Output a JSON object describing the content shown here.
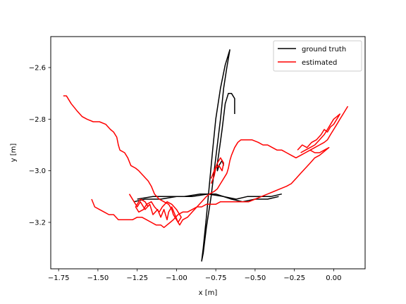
{
  "chart_data": {
    "type": "line",
    "xlabel": "x [m]",
    "ylabel": "y [m]",
    "xlim": [
      -1.8,
      0.2
    ],
    "ylim": [
      -3.38,
      -2.48
    ],
    "xticks": [
      -1.75,
      -1.5,
      -1.25,
      -1.0,
      -0.75,
      -0.5,
      -0.25,
      0.0
    ],
    "xtick_labels": [
      "−1.75",
      "−1.50",
      "−1.25",
      "−1.00",
      "−0.75",
      "−0.50",
      "−0.25",
      "0.00"
    ],
    "yticks": [
      -3.2,
      -3.0,
      -2.8,
      -2.6
    ],
    "ytick_labels": [
      "−3.2",
      "−3.0",
      "−2.8",
      "−2.6"
    ],
    "legend_position": "top-right",
    "series": [
      {
        "name": "ground truth",
        "color": "#000000",
        "paths": [
          [
            [
              -0.63,
              -2.78
            ],
            [
              -0.63,
              -2.72
            ],
            [
              -0.65,
              -2.7
            ],
            [
              -0.67,
              -2.7
            ],
            [
              -0.69,
              -2.74
            ],
            [
              -0.71,
              -2.84
            ],
            [
              -0.73,
              -2.93
            ],
            [
              -0.74,
              -2.97
            ],
            [
              -0.74,
              -3.0
            ],
            [
              -0.73,
              -2.98
            ],
            [
              -0.71,
              -2.96
            ],
            [
              -0.7,
              -2.98
            ]
          ],
          [
            [
              -0.66,
              -2.53
            ],
            [
              -0.68,
              -2.6
            ],
            [
              -0.7,
              -2.68
            ],
            [
              -0.72,
              -2.8
            ],
            [
              -0.75,
              -2.95
            ],
            [
              -0.78,
              -3.1
            ],
            [
              -0.81,
              -3.22
            ],
            [
              -0.83,
              -3.32
            ],
            [
              -0.84,
              -3.35
            ],
            [
              -0.83,
              -3.3
            ],
            [
              -0.81,
              -3.18
            ],
            [
              -0.79,
              -3.05
            ],
            [
              -0.77,
              -2.92
            ],
            [
              -0.75,
              -2.8
            ],
            [
              -0.72,
              -2.68
            ],
            [
              -0.69,
              -2.59
            ],
            [
              -0.66,
              -2.53
            ]
          ],
          [
            [
              -1.27,
              -3.12
            ],
            [
              -1.2,
              -3.11
            ],
            [
              -1.1,
              -3.11
            ],
            [
              -1.0,
              -3.1
            ],
            [
              -0.9,
              -3.1
            ],
            [
              -0.8,
              -3.09
            ],
            [
              -0.7,
              -3.1
            ],
            [
              -0.62,
              -3.11
            ],
            [
              -0.55,
              -3.1
            ],
            [
              -0.47,
              -3.1
            ],
            [
              -0.4,
              -3.1
            ],
            [
              -0.33,
              -3.09
            ]
          ],
          [
            [
              -1.25,
              -3.11
            ],
            [
              -1.15,
              -3.1
            ],
            [
              -1.05,
              -3.1
            ],
            [
              -0.95,
              -3.1
            ],
            [
              -0.85,
              -3.09
            ],
            [
              -0.75,
              -3.09
            ],
            [
              -0.65,
              -3.11
            ],
            [
              -0.58,
              -3.12
            ],
            [
              -0.5,
              -3.11
            ],
            [
              -0.42,
              -3.11
            ],
            [
              -0.35,
              -3.1
            ]
          ]
        ]
      },
      {
        "name": "estimated",
        "color": "#ff0000",
        "paths": [
          [
            [
              -1.72,
              -2.71
            ],
            [
              -1.7,
              -2.71
            ],
            [
              -1.67,
              -2.74
            ],
            [
              -1.63,
              -2.77
            ],
            [
              -1.6,
              -2.79
            ],
            [
              -1.57,
              -2.8
            ],
            [
              -1.53,
              -2.81
            ],
            [
              -1.49,
              -2.81
            ],
            [
              -1.45,
              -2.82
            ],
            [
              -1.42,
              -2.84
            ],
            [
              -1.4,
              -2.85
            ],
            [
              -1.38,
              -2.87
            ],
            [
              -1.37,
              -2.9
            ],
            [
              -1.36,
              -2.92
            ],
            [
              -1.33,
              -2.93
            ],
            [
              -1.31,
              -2.95
            ],
            [
              -1.29,
              -2.98
            ],
            [
              -1.26,
              -2.99
            ],
            [
              -1.24,
              -3.0
            ],
            [
              -1.21,
              -3.02
            ],
            [
              -1.18,
              -3.04
            ],
            [
              -1.16,
              -3.06
            ],
            [
              -1.14,
              -3.09
            ],
            [
              -1.11,
              -3.11
            ],
            [
              -1.08,
              -3.12
            ],
            [
              -1.05,
              -3.13
            ],
            [
              -1.03,
              -3.15
            ],
            [
              -1.02,
              -3.17
            ],
            [
              -1.0,
              -3.19
            ],
            [
              -0.98,
              -3.21
            ],
            [
              -0.96,
              -3.19
            ],
            [
              -0.93,
              -3.18
            ],
            [
              -0.9,
              -3.16
            ],
            [
              -0.87,
              -3.14
            ],
            [
              -0.84,
              -3.12
            ],
            [
              -0.81,
              -3.1
            ],
            [
              -0.79,
              -3.09
            ],
            [
              -0.76,
              -3.08
            ],
            [
              -0.74,
              -3.07
            ],
            [
              -0.72,
              -3.05
            ],
            [
              -0.7,
              -3.03
            ],
            [
              -0.68,
              -3.01
            ],
            [
              -0.67,
              -2.99
            ],
            [
              -0.66,
              -2.96
            ],
            [
              -0.65,
              -2.94
            ],
            [
              -0.63,
              -2.91
            ],
            [
              -0.61,
              -2.89
            ],
            [
              -0.59,
              -2.88
            ],
            [
              -0.56,
              -2.88
            ],
            [
              -0.52,
              -2.88
            ],
            [
              -0.48,
              -2.89
            ],
            [
              -0.45,
              -2.9
            ],
            [
              -0.42,
              -2.9
            ],
            [
              -0.39,
              -2.91
            ],
            [
              -0.36,
              -2.92
            ],
            [
              -0.33,
              -2.92
            ],
            [
              -0.3,
              -2.93
            ],
            [
              -0.27,
              -2.94
            ],
            [
              -0.24,
              -2.95
            ],
            [
              -0.21,
              -2.94
            ],
            [
              -0.18,
              -2.93
            ],
            [
              -0.15,
              -2.92
            ],
            [
              -0.12,
              -2.91
            ],
            [
              -0.09,
              -2.9
            ],
            [
              -0.06,
              -2.89
            ],
            [
              -0.04,
              -2.88
            ],
            [
              -0.02,
              -2.86
            ],
            [
              0.0,
              -2.84
            ],
            [
              0.02,
              -2.82
            ],
            [
              0.04,
              -2.8
            ],
            [
              0.06,
              -2.78
            ],
            [
              0.08,
              -2.76
            ],
            [
              0.09,
              -2.75
            ]
          ],
          [
            [
              -1.54,
              -3.11
            ],
            [
              -1.52,
              -3.14
            ],
            [
              -1.49,
              -3.15
            ],
            [
              -1.46,
              -3.16
            ],
            [
              -1.43,
              -3.17
            ],
            [
              -1.4,
              -3.17
            ],
            [
              -1.37,
              -3.19
            ],
            [
              -1.34,
              -3.19
            ],
            [
              -1.31,
              -3.19
            ],
            [
              -1.28,
              -3.19
            ],
            [
              -1.25,
              -3.18
            ],
            [
              -1.22,
              -3.18
            ],
            [
              -1.19,
              -3.19
            ],
            [
              -1.16,
              -3.2
            ],
            [
              -1.13,
              -3.21
            ],
            [
              -1.1,
              -3.21
            ],
            [
              -1.08,
              -3.22
            ],
            [
              -1.06,
              -3.21
            ],
            [
              -1.04,
              -3.2
            ],
            [
              -1.02,
              -3.19
            ],
            [
              -0.99,
              -3.17
            ],
            [
              -0.96,
              -3.16
            ],
            [
              -0.93,
              -3.16
            ],
            [
              -0.9,
              -3.15
            ],
            [
              -0.87,
              -3.14
            ],
            [
              -0.84,
              -3.14
            ],
            [
              -0.81,
              -3.13
            ],
            [
              -0.78,
              -3.13
            ],
            [
              -0.75,
              -3.13
            ],
            [
              -0.72,
              -3.12
            ],
            [
              -0.69,
              -3.12
            ],
            [
              -0.66,
              -3.12
            ],
            [
              -0.62,
              -3.12
            ],
            [
              -0.58,
              -3.12
            ],
            [
              -0.54,
              -3.12
            ],
            [
              -0.5,
              -3.11
            ],
            [
              -0.46,
              -3.1
            ],
            [
              -0.42,
              -3.09
            ],
            [
              -0.38,
              -3.08
            ],
            [
              -0.34,
              -3.07
            ],
            [
              -0.3,
              -3.06
            ],
            [
              -0.27,
              -3.05
            ],
            [
              -0.24,
              -3.03
            ],
            [
              -0.21,
              -3.01
            ],
            [
              -0.18,
              -2.99
            ],
            [
              -0.15,
              -2.97
            ],
            [
              -0.12,
              -2.95
            ],
            [
              -0.09,
              -2.94
            ],
            [
              -0.07,
              -2.93
            ],
            [
              -0.05,
              -2.92
            ],
            [
              -0.03,
              -2.91
            ],
            [
              -0.06,
              -2.92
            ],
            [
              -0.09,
              -2.93
            ],
            [
              -0.12,
              -2.93
            ],
            [
              -0.15,
              -2.92
            ]
          ],
          [
            [
              -1.3,
              -3.09
            ],
            [
              -1.27,
              -3.12
            ],
            [
              -1.25,
              -3.14
            ],
            [
              -1.23,
              -3.12
            ],
            [
              -1.2,
              -3.15
            ],
            [
              -1.17,
              -3.13
            ],
            [
              -1.15,
              -3.17
            ],
            [
              -1.12,
              -3.15
            ],
            [
              -1.1,
              -3.18
            ],
            [
              -1.08,
              -3.15
            ],
            [
              -1.06,
              -3.19
            ],
            [
              -1.05,
              -3.16
            ],
            [
              -1.03,
              -3.14
            ],
            [
              -1.01,
              -3.17
            ],
            [
              -0.99,
              -3.2
            ],
            [
              -0.97,
              -3.18
            ],
            [
              -1.0,
              -3.15
            ],
            [
              -1.03,
              -3.13
            ],
            [
              -1.06,
              -3.12
            ],
            [
              -1.09,
              -3.14
            ],
            [
              -1.11,
              -3.16
            ],
            [
              -1.14,
              -3.14
            ],
            [
              -1.16,
              -3.12
            ],
            [
              -1.19,
              -3.13
            ],
            [
              -1.21,
              -3.15
            ],
            [
              -1.24,
              -3.16
            ],
            [
              -1.26,
              -3.14
            ],
            [
              -1.23,
              -3.11
            ],
            [
              -1.2,
              -3.12
            ],
            [
              -1.18,
              -3.14
            ]
          ],
          [
            [
              -0.78,
              -3.05
            ],
            [
              -0.76,
              -3.02
            ],
            [
              -0.75,
              -2.99
            ],
            [
              -0.73,
              -2.98
            ],
            [
              -0.71,
              -3.0
            ],
            [
              -0.7,
              -2.97
            ],
            [
              -0.72,
              -2.95
            ],
            [
              -0.74,
              -2.97
            ],
            [
              -0.76,
              -3.0
            ],
            [
              -0.78,
              -3.03
            ]
          ],
          [
            [
              -0.23,
              -2.92
            ],
            [
              -0.2,
              -2.9
            ],
            [
              -0.17,
              -2.91
            ],
            [
              -0.14,
              -2.89
            ],
            [
              -0.11,
              -2.88
            ],
            [
              -0.08,
              -2.86
            ],
            [
              -0.06,
              -2.84
            ],
            [
              -0.04,
              -2.85
            ],
            [
              -0.02,
              -2.83
            ],
            [
              0.0,
              -2.82
            ],
            [
              0.02,
              -2.8
            ],
            [
              0.04,
              -2.78
            ],
            [
              0.02,
              -2.79
            ],
            [
              0.0,
              -2.8
            ],
            [
              -0.02,
              -2.82
            ],
            [
              -0.04,
              -2.84
            ],
            [
              -0.06,
              -2.86
            ],
            [
              -0.09,
              -2.88
            ],
            [
              -0.12,
              -2.9
            ],
            [
              -0.15,
              -2.91
            ],
            [
              -0.18,
              -2.92
            ],
            [
              -0.21,
              -2.93
            ]
          ]
        ]
      }
    ]
  }
}
